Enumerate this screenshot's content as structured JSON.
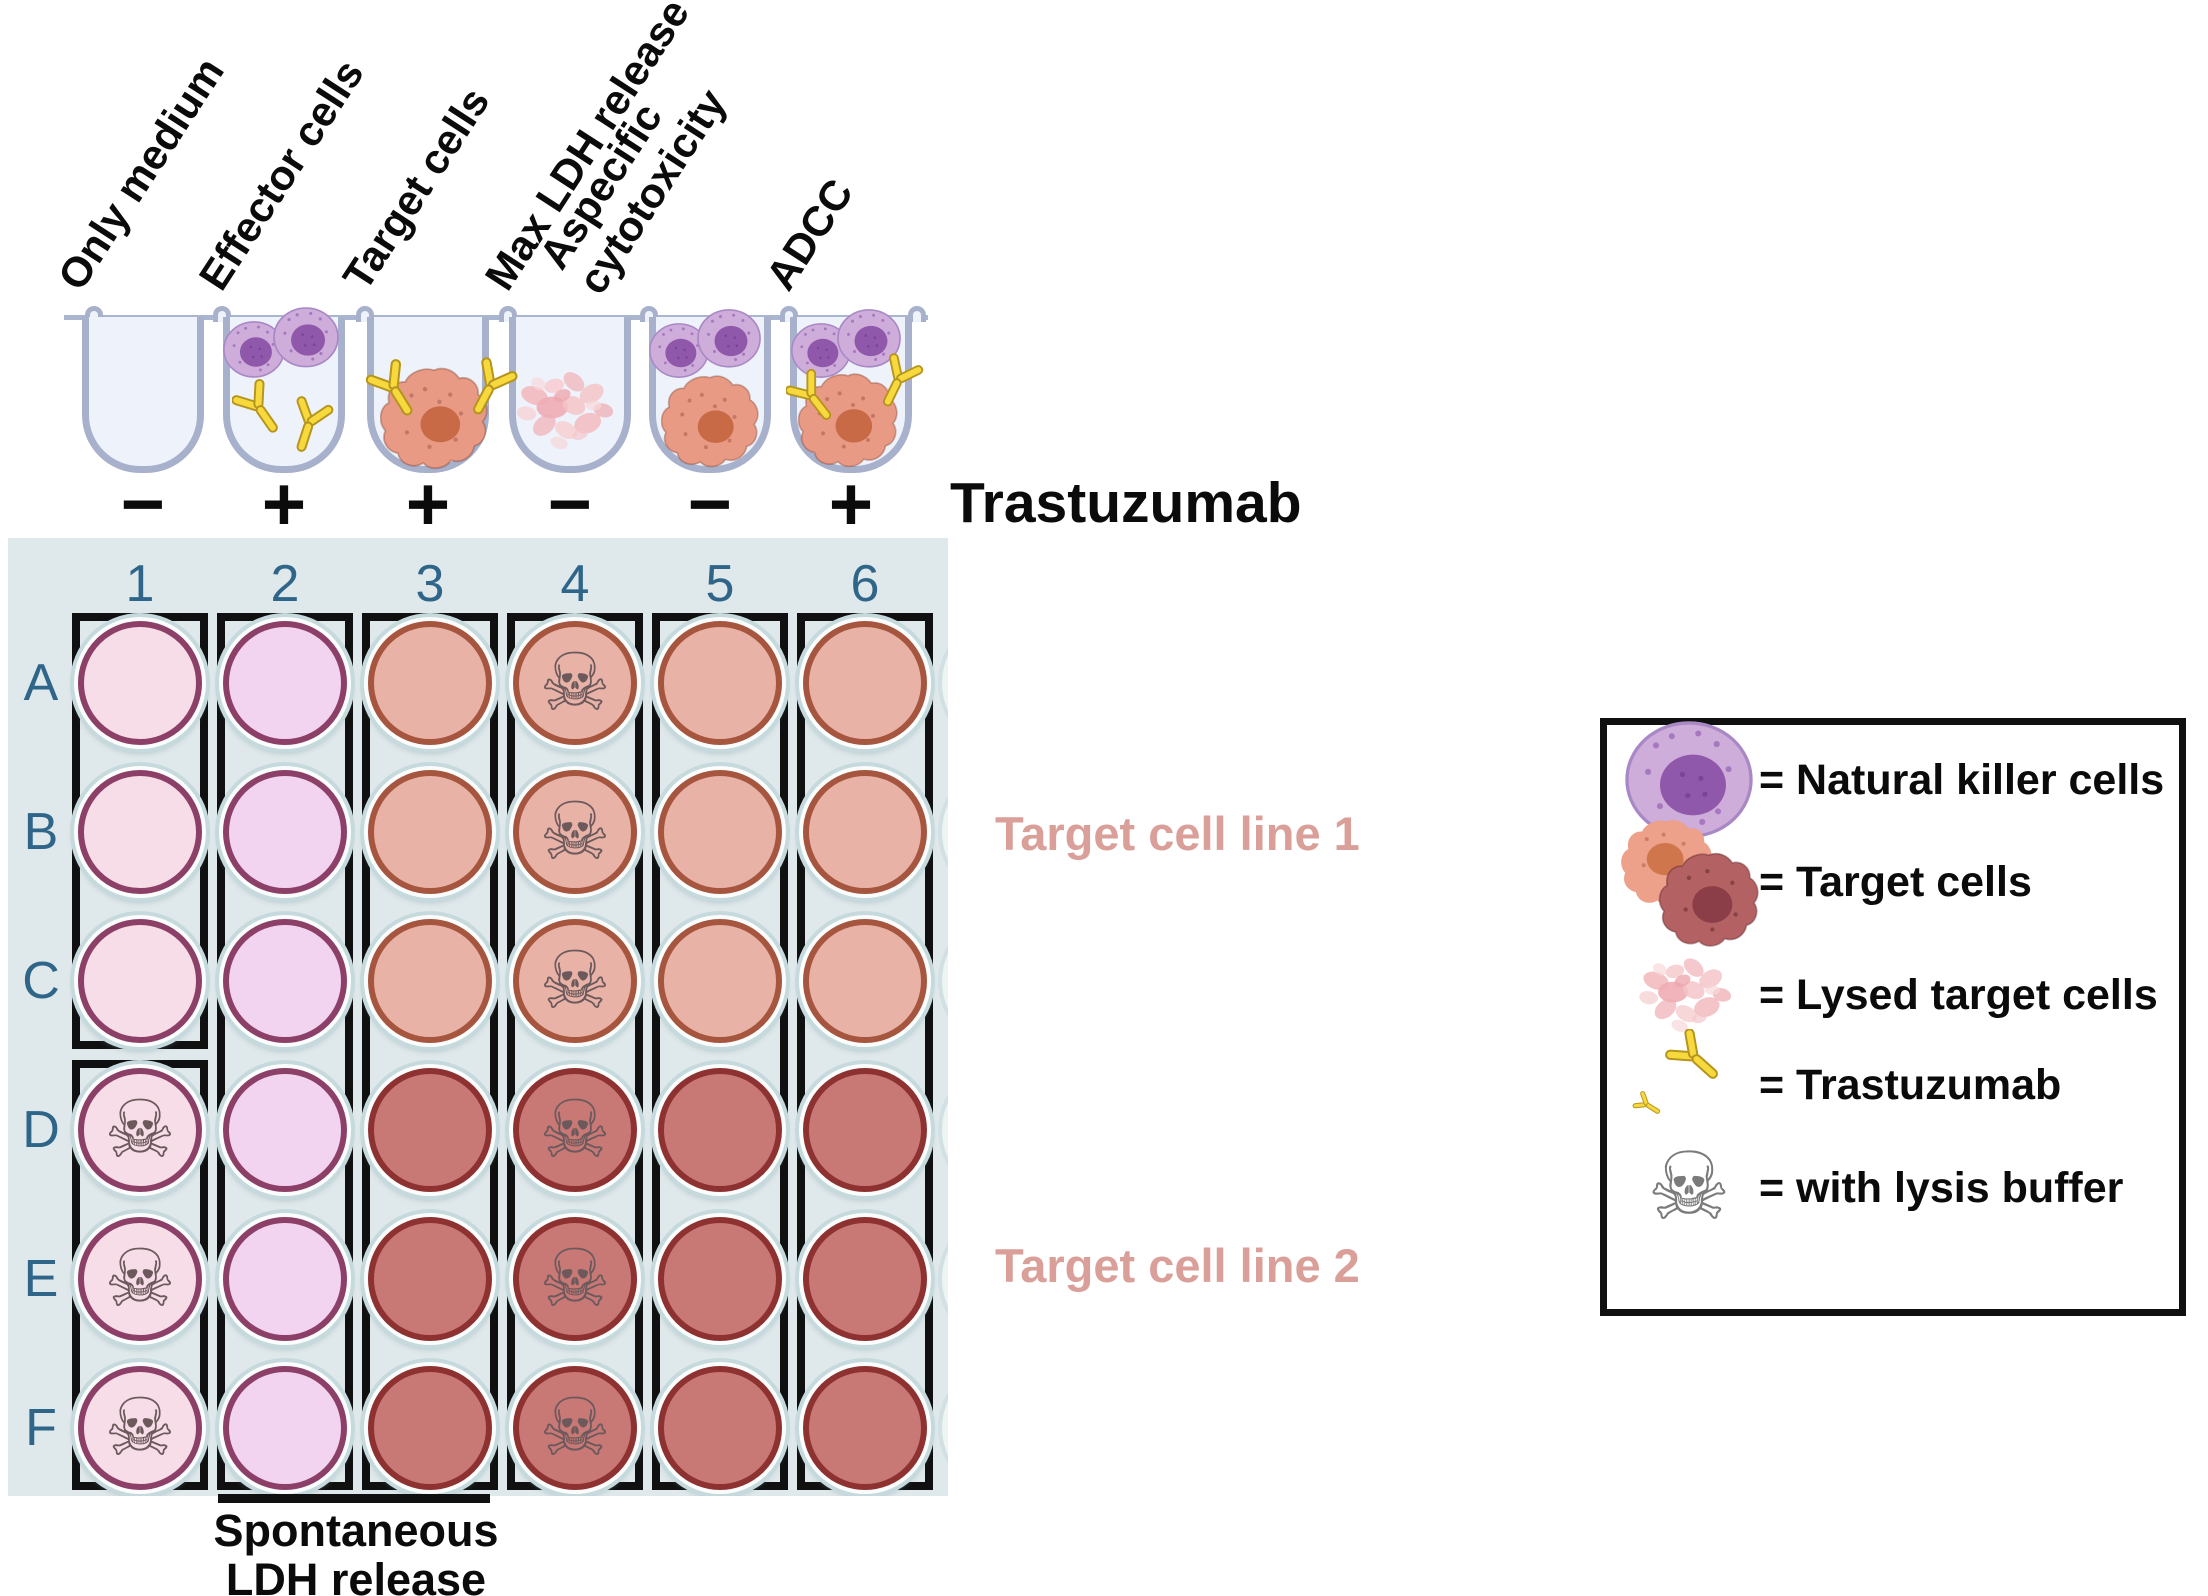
{
  "figure": {
    "conditions": [
      {
        "label": "Only medium",
        "sign": "−",
        "contents": "medium-only"
      },
      {
        "label": "Effector cells",
        "sign": "+",
        "contents": "nk-antibodies"
      },
      {
        "label": "Target cells",
        "sign": "+",
        "contents": "target-antibodies"
      },
      {
        "label": "Max LDH release",
        "sign": "−",
        "contents": "lysed"
      },
      {
        "label": "Aspecific cytotoxicity",
        "sign": "−",
        "contents": "nk-target"
      },
      {
        "label": "ADCC",
        "sign": "+",
        "contents": "nk-target-antibodies"
      }
    ],
    "trastuzumab_label": "Trastuzumab"
  },
  "plate": {
    "column_labels": [
      "1",
      "2",
      "3",
      "4",
      "5",
      "6"
    ],
    "row_labels": [
      "A",
      "B",
      "C",
      "D",
      "E",
      "F"
    ],
    "wells": [
      [
        "pink",
        "lavender",
        "salmon",
        "salmon-skull",
        "salmon",
        "salmon"
      ],
      [
        "pink",
        "lavender",
        "salmon",
        "salmon-skull",
        "salmon",
        "salmon"
      ],
      [
        "pink",
        "lavender",
        "salmon",
        "salmon-skull",
        "salmon",
        "salmon"
      ],
      [
        "pink-skull",
        "lavender",
        "darkred",
        "darkred-skull",
        "darkred",
        "darkred"
      ],
      [
        "pink-skull",
        "lavender",
        "darkred",
        "darkred-skull",
        "darkred",
        "darkred"
      ],
      [
        "pink-skull",
        "lavender",
        "darkred",
        "darkred-skull",
        "darkred",
        "darkred"
      ]
    ]
  },
  "annotations": {
    "target_line_1": "Target cell line 1",
    "target_line_2": "Target cell line 2",
    "spontaneous_line_1": "Spontaneous",
    "spontaneous_line_2": "LDH release"
  },
  "legend": {
    "items": [
      {
        "icon": "nk-cell-icon",
        "label": "= Natural killer cells"
      },
      {
        "icon": "target-cells-icon",
        "label": "= Target cells"
      },
      {
        "icon": "lysed-target-cells-icon",
        "label": "= Lysed target cells"
      },
      {
        "icon": "antibody-icon",
        "label": "= Trastuzumab"
      },
      {
        "icon": "skull-icon",
        "label": "= with lysis buffer"
      }
    ]
  },
  "icons": {
    "skull_char": "☠"
  },
  "colors": {
    "well_pink": {
      "fill": "#f7dde7",
      "stroke": "#8d4067"
    },
    "well_lavender": {
      "fill": "#f2d4f0",
      "stroke": "#8d4067"
    },
    "well_salmon": {
      "fill": "#e9b2a6",
      "stroke": "#a6553f"
    },
    "well_darkred": {
      "fill": "#c87875",
      "stroke": "#8e3231"
    },
    "skull": "#6b595c",
    "plate_bg": "#dfe8ea",
    "plate_label": "#2e6588",
    "target_line_label": "#d99f98",
    "nk_cell": "#cfadda",
    "nk_nucleus": "#9058ab",
    "target_cell_body": "#e89a84",
    "target_cell_nucleus": "#c96a47",
    "target_cell_dark_body": "#b36163",
    "target_cell_dark_nucleus": "#8b3e47",
    "lysed_cell": "#f2b6ba",
    "antibody": "#f7d93e"
  }
}
